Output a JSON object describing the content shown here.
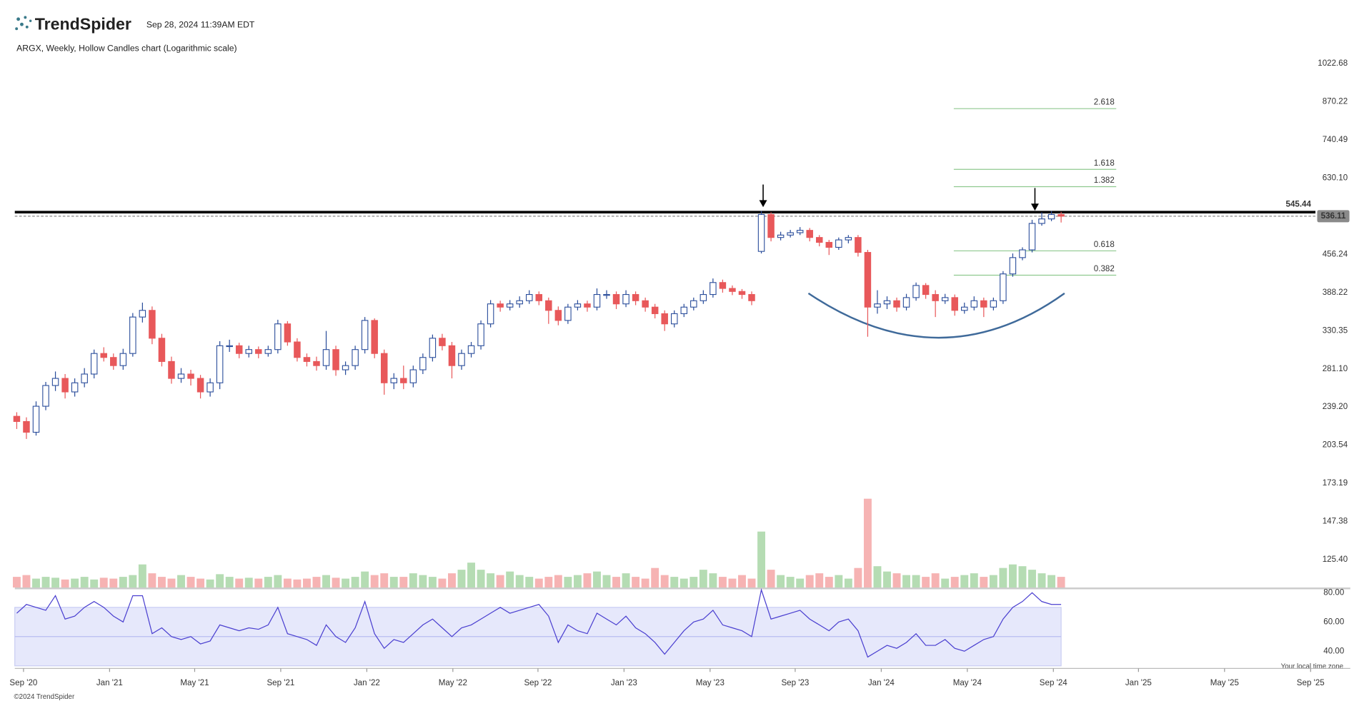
{
  "header": {
    "brand": "TrendSpider",
    "timestamp": "Sep 28, 2024 11:39AM EDT"
  },
  "chart_data": {
    "type": "candlestick",
    "title": "ARGX, Weekly, Hollow Candles chart (Logarithmic scale)",
    "log_scale": true,
    "ylim": [
      111.5,
      1064.8
    ],
    "yticks": [
      1022.68,
      870.22,
      740.49,
      {
        "value": 630.1,
        "label": "630.10"
      },
      456.24,
      388.22,
      330.35,
      {
        "value": 281.1,
        "label": "281.10"
      },
      {
        "value": 239.2,
        "label": "239.20"
      },
      203.54,
      173.19,
      147.38,
      {
        "value": 125.4,
        "label": "125.40"
      }
    ],
    "xlim": [
      -0.2,
      134.3
    ],
    "xticks": [
      {
        "value": 0.7,
        "label": "Sep '20"
      },
      {
        "value": 9.6,
        "label": "Jan '21"
      },
      {
        "value": 18.4,
        "label": "May '21"
      },
      {
        "value": 27.3,
        "label": "Sep '21"
      },
      {
        "value": 36.2,
        "label": "Jan '22"
      },
      {
        "value": 45.1,
        "label": "May '22"
      },
      {
        "value": 53.9,
        "label": "Sep '22"
      },
      {
        "value": 62.8,
        "label": "Jan '23"
      },
      {
        "value": 71.7,
        "label": "May '23"
      },
      {
        "value": 80.5,
        "label": "Sep '23"
      },
      {
        "value": 89.4,
        "label": "Jan '24"
      },
      {
        "value": 98.3,
        "label": "May '24"
      },
      {
        "value": 107.2,
        "label": "Sep '24"
      },
      {
        "value": 116.0,
        "label": "Jan '25"
      },
      {
        "value": 124.9,
        "label": "May '25"
      },
      {
        "value": 133.8,
        "label": "Sep '25"
      }
    ],
    "up_color": "#2a4d9b",
    "down_color": "#e8585a",
    "candles": [
      [
        230,
        234,
        218,
        225
      ],
      [
        225,
        229,
        209,
        215
      ],
      [
        215,
        245,
        212,
        240
      ],
      [
        240,
        266,
        236,
        262
      ],
      [
        262,
        278,
        256,
        270
      ],
      [
        270,
        275,
        248,
        255
      ],
      [
        255,
        270,
        250,
        265
      ],
      [
        265,
        282,
        260,
        275
      ],
      [
        275,
        305,
        270,
        300
      ],
      [
        300,
        308,
        290,
        295
      ],
      [
        295,
        300,
        280,
        285
      ],
      [
        285,
        306,
        280,
        300
      ],
      [
        300,
        356,
        296,
        350
      ],
      [
        350,
        372,
        342,
        360
      ],
      [
        360,
        366,
        312,
        320
      ],
      [
        320,
        326,
        284,
        290
      ],
      [
        290,
        296,
        264,
        270
      ],
      [
        270,
        282,
        265,
        275
      ],
      [
        275,
        280,
        262,
        270
      ],
      [
        270,
        274,
        248,
        255
      ],
      [
        255,
        270,
        250,
        265
      ],
      [
        265,
        316,
        258,
        310
      ],
      [
        310,
        318,
        302,
        310
      ],
      [
        310,
        314,
        294,
        300
      ],
      [
        300,
        310,
        295,
        305
      ],
      [
        305,
        309,
        294,
        300
      ],
      [
        300,
        310,
        296,
        305
      ],
      [
        305,
        346,
        300,
        340
      ],
      [
        340,
        344,
        310,
        315
      ],
      [
        315,
        320,
        290,
        295
      ],
      [
        295,
        300,
        284,
        290
      ],
      [
        290,
        296,
        279,
        285
      ],
      [
        285,
        330,
        280,
        305
      ],
      [
        305,
        310,
        273,
        280
      ],
      [
        280,
        290,
        274,
        285
      ],
      [
        285,
        310,
        280,
        305
      ],
      [
        305,
        350,
        300,
        345
      ],
      [
        345,
        348,
        294,
        300
      ],
      [
        300,
        305,
        252,
        265
      ],
      [
        265,
        276,
        258,
        270
      ],
      [
        270,
        285,
        258,
        265
      ],
      [
        265,
        285,
        260,
        280
      ],
      [
        280,
        300,
        275,
        295
      ],
      [
        295,
        325,
        290,
        320
      ],
      [
        320,
        326,
        304,
        310
      ],
      [
        310,
        315,
        270,
        285
      ],
      [
        285,
        305,
        280,
        300
      ],
      [
        300,
        315,
        295,
        310
      ],
      [
        310,
        345,
        305,
        340
      ],
      [
        340,
        376,
        335,
        370
      ],
      [
        370,
        375,
        358,
        365
      ],
      [
        365,
        376,
        360,
        370
      ],
      [
        370,
        382,
        364,
        375
      ],
      [
        375,
        392,
        370,
        385
      ],
      [
        385,
        390,
        368,
        375
      ],
      [
        375,
        380,
        340,
        360
      ],
      [
        360,
        366,
        338,
        345
      ],
      [
        345,
        370,
        340,
        365
      ],
      [
        365,
        376,
        360,
        370
      ],
      [
        370,
        375,
        358,
        365
      ],
      [
        365,
        395,
        360,
        385
      ],
      [
        385,
        392,
        378,
        385
      ],
      [
        385,
        390,
        362,
        370
      ],
      [
        370,
        392,
        365,
        385
      ],
      [
        385,
        390,
        368,
        375
      ],
      [
        375,
        380,
        358,
        365
      ],
      [
        365,
        370,
        348,
        355
      ],
      [
        355,
        360,
        330,
        340
      ],
      [
        340,
        360,
        335,
        355
      ],
      [
        355,
        370,
        350,
        365
      ],
      [
        365,
        380,
        360,
        375
      ],
      [
        375,
        392,
        370,
        385
      ],
      [
        385,
        412,
        380,
        405
      ],
      [
        405,
        410,
        388,
        395
      ],
      [
        395,
        400,
        384,
        390
      ],
      [
        390,
        394,
        378,
        385
      ],
      [
        385,
        390,
        368,
        375
      ],
      [
        462,
        548,
        458,
        540
      ],
      [
        540,
        545,
        482,
        490
      ],
      [
        490,
        502,
        484,
        495
      ],
      [
        495,
        506,
        490,
        500
      ],
      [
        500,
        512,
        495,
        505
      ],
      [
        505,
        510,
        482,
        490
      ],
      [
        490,
        495,
        472,
        480
      ],
      [
        480,
        485,
        455,
        470
      ],
      [
        470,
        490,
        465,
        485
      ],
      [
        485,
        495,
        478,
        490
      ],
      [
        490,
        495,
        452,
        460
      ],
      [
        460,
        465,
        322,
        365
      ],
      [
        365,
        392,
        355,
        370
      ],
      [
        370,
        382,
        362,
        375
      ],
      [
        375,
        380,
        358,
        365
      ],
      [
        365,
        386,
        360,
        380
      ],
      [
        380,
        405,
        375,
        400
      ],
      [
        400,
        404,
        378,
        385
      ],
      [
        385,
        392,
        350,
        375
      ],
      [
        375,
        386,
        370,
        380
      ],
      [
        380,
        385,
        352,
        360
      ],
      [
        360,
        372,
        355,
        365
      ],
      [
        365,
        382,
        360,
        375
      ],
      [
        375,
        380,
        350,
        365
      ],
      [
        365,
        380,
        360,
        375
      ],
      [
        375,
        425,
        370,
        420
      ],
      [
        420,
        458,
        415,
        450
      ],
      [
        450,
        470,
        445,
        465
      ],
      [
        465,
        528,
        460,
        520
      ],
      [
        520,
        545,
        515,
        530
      ],
      [
        530,
        548,
        525,
        540
      ],
      [
        540,
        546,
        522,
        536.11
      ]
    ],
    "resistance": 545.44,
    "fib_range": [
      96.9,
      113.7
    ],
    "fib_color": "#8fc98f",
    "fib_levels": [
      {
        "ratio": 2.618,
        "price": 845
      },
      {
        "ratio": 1.618,
        "price": 653.6
      },
      {
        "ratio": 1.382,
        "price": 607.4
      },
      {
        "ratio": 0.618,
        "price": 463
      },
      {
        "ratio": 0.382,
        "price": 417.8
      }
    ],
    "volume": [
      12,
      14,
      10,
      12,
      11,
      9,
      10,
      12,
      9,
      11,
      10,
      12,
      14,
      26,
      16,
      12,
      10,
      14,
      12,
      10,
      9,
      15,
      12,
      10,
      11,
      10,
      12,
      14,
      10,
      9,
      10,
      12,
      14,
      11,
      10,
      12,
      18,
      14,
      16,
      12,
      12,
      16,
      14,
      12,
      10,
      16,
      20,
      28,
      20,
      16,
      14,
      18,
      14,
      12,
      10,
      12,
      14,
      12,
      14,
      16,
      18,
      14,
      12,
      16,
      12,
      10,
      22,
      14,
      12,
      10,
      12,
      20,
      16,
      12,
      10,
      14,
      10,
      63,
      20,
      14,
      12,
      10,
      14,
      16,
      12,
      14,
      10,
      22,
      100,
      24,
      18,
      16,
      14,
      14,
      12,
      16,
      10,
      12,
      14,
      16,
      12,
      14,
      22,
      26,
      24,
      20,
      16,
      14,
      12
    ],
    "volume_ylim": [
      0,
      100
    ],
    "up_volume_color": "#b5dcb3",
    "down_volume_color": "#f6b3b3",
    "rsi": {
      "values": [
        66,
        72,
        70,
        68,
        78,
        62,
        64,
        70,
        74,
        70,
        64,
        60,
        78,
        78,
        52,
        56,
        50,
        48,
        50,
        45,
        47,
        58,
        56,
        54,
        56,
        55,
        58,
        70,
        52,
        50,
        48,
        44,
        58,
        50,
        46,
        56,
        74,
        52,
        42,
        48,
        46,
        52,
        58,
        62,
        56,
        50,
        56,
        58,
        62,
        66,
        70,
        66,
        68,
        70,
        72,
        64,
        46,
        58,
        54,
        52,
        66,
        62,
        58,
        64,
        56,
        52,
        46,
        38,
        46,
        54,
        60,
        62,
        68,
        58,
        56,
        54,
        50,
        82,
        62,
        64,
        66,
        68,
        62,
        58,
        54,
        60,
        62,
        54,
        36,
        40,
        44,
        42,
        46,
        52,
        44,
        44,
        48,
        42,
        40,
        44,
        48,
        50,
        62,
        70,
        74,
        80,
        74,
        72,
        72
      ],
      "ylim": [
        30,
        82.4
      ],
      "yticks": [
        {
          "value": 80,
          "label": "80.00"
        },
        {
          "value": 60,
          "label": "60.00"
        },
        {
          "value": 40,
          "label": "40.00"
        }
      ],
      "band": [
        30,
        70
      ],
      "midline": 50,
      "color": "#4a3fd0"
    }
  },
  "footer": {
    "timezone_note": "Your local time zone",
    "copyright": "©2024 TrendSpider"
  }
}
